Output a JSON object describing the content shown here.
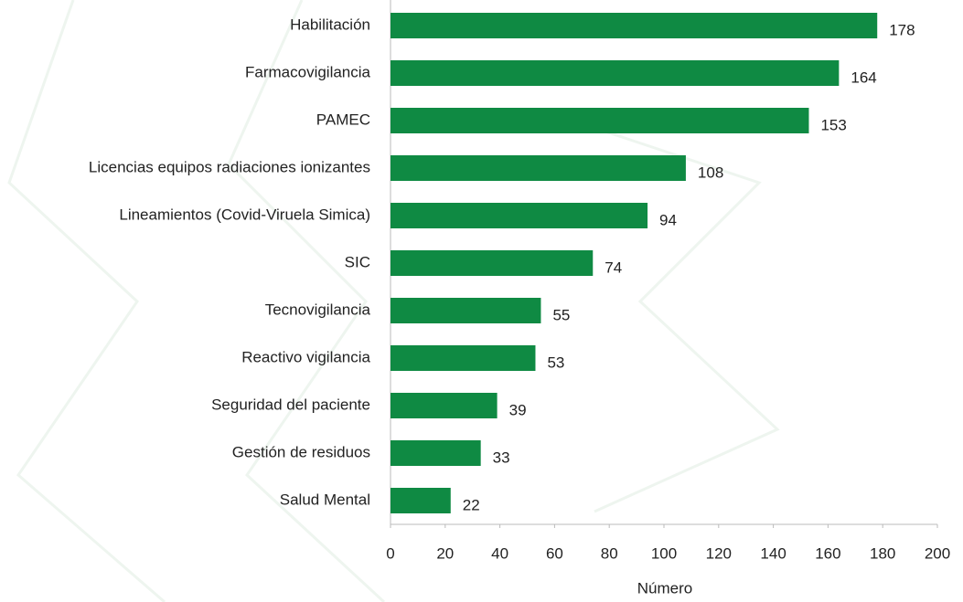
{
  "chart_data": {
    "type": "bar",
    "orientation": "horizontal",
    "x_label": "Número",
    "categories": [
      "Habilitación",
      "Farmacovigilancia",
      "PAMEC",
      "Licencias equipos radiaciones ionizantes",
      "Lineamientos (Covid-Viruela Simica)",
      "SIC",
      "Tecnovigilancia",
      "Reactivo vigilancia",
      "Seguridad del paciente",
      "Gestión de residuos",
      "Salud Mental"
    ],
    "values": [
      178,
      164,
      153,
      108,
      94,
      74,
      55,
      53,
      39,
      33,
      22
    ],
    "color": "#0f8a43",
    "xlim": [
      0,
      200
    ],
    "xticks": [
      0,
      20,
      40,
      60,
      80,
      100,
      120,
      140,
      160,
      180,
      200
    ]
  }
}
